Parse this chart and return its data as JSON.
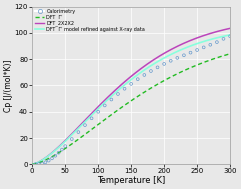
{
  "title": "",
  "xlabel": "Temperature [K]",
  "ylabel": "Cp [J/(mol*K)]",
  "xlim": [
    0,
    300
  ],
  "ylim": [
    0,
    120
  ],
  "xticks": [
    0,
    50,
    100,
    150,
    200,
    250,
    300
  ],
  "yticks": [
    0,
    20,
    40,
    60,
    80,
    100,
    120
  ],
  "background_color": "#e8e8e8",
  "legend_entries": [
    {
      "label": "Calorimetry",
      "color": "#6699cc",
      "linestyle": "none",
      "marker": "o"
    },
    {
      "label": "DFT  Γʹ",
      "color": "#22bb22",
      "linestyle": "--"
    },
    {
      "label": "DFT_2X2X2",
      "color": "#bb44bb",
      "linestyle": "-"
    },
    {
      "label": "DFT  Γʹ model refined against X-ray data",
      "color": "#88ffdd",
      "linestyle": "-"
    }
  ],
  "grid_color": "#ffffff",
  "cal_T": [
    5,
    10,
    15,
    20,
    25,
    30,
    35,
    40,
    45,
    50,
    60,
    70,
    80,
    90,
    100,
    110,
    120,
    130,
    140,
    150,
    160,
    170,
    180,
    190,
    200,
    210,
    220,
    230,
    240,
    250,
    260,
    270,
    280,
    290,
    300
  ],
  "cal_cp": [
    0.1,
    0.3,
    0.7,
    1.5,
    2.8,
    4.5,
    6.5,
    8.8,
    11.2,
    13.8,
    19.2,
    24.5,
    29.8,
    35.0,
    40.0,
    44.8,
    49.3,
    53.5,
    57.5,
    61.2,
    64.8,
    68.0,
    71.0,
    73.8,
    76.4,
    78.8,
    81.0,
    83.0,
    85.0,
    87.0,
    89.0,
    91.0,
    93.0,
    95.5,
    97.5
  ]
}
